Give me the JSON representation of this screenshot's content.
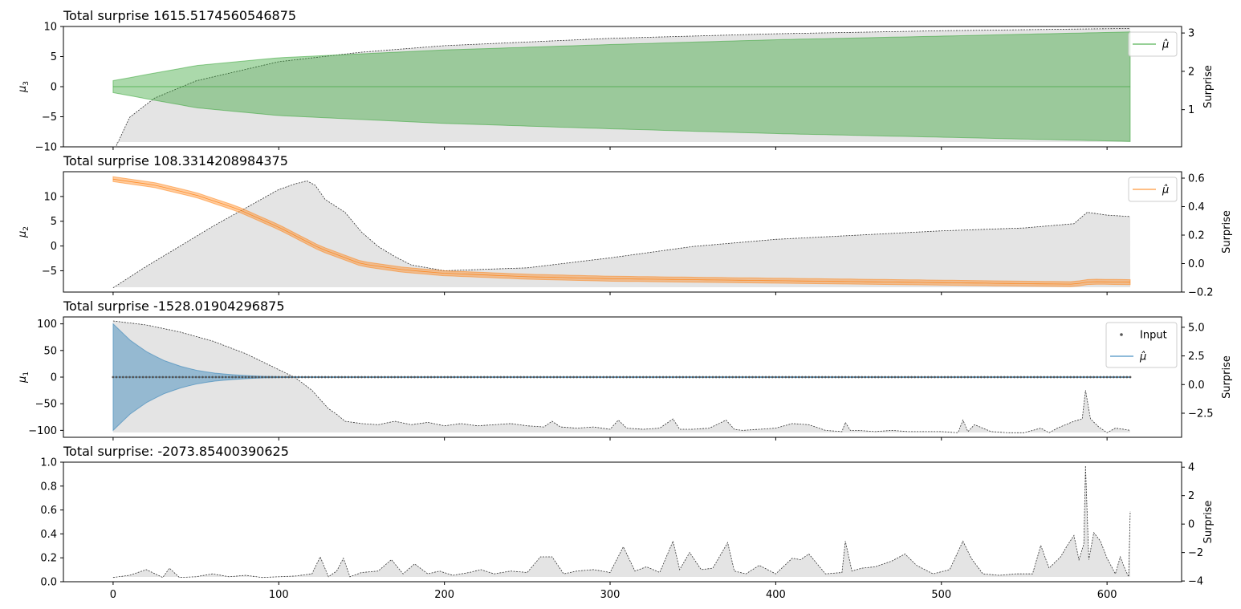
{
  "chart_data": [
    {
      "type": "area",
      "title": "Total surprise 1615.5174560546875",
      "ylabel": "$\\mu_3$",
      "ylabel_display": "μ",
      "ylabel_sub": "3",
      "y2label": "Surprise",
      "xlim": [
        -30,
        645
      ],
      "ylim": [
        -10,
        10
      ],
      "y2lim": [
        0.03,
        3.17
      ],
      "yticks": [
        -10,
        -5,
        0,
        5,
        10
      ],
      "y2ticks": [
        1,
        2,
        3
      ],
      "legend": {
        "placement": "top-right",
        "entries": [
          "$\\hat{\\mu}$"
        ],
        "display": [
          "μ̂"
        ]
      },
      "colors": {
        "mean": "#2ca02c",
        "band": "#2ca02c",
        "surprise_fill": "#d3d3d3",
        "surprise_line": "#333333"
      },
      "mean": {
        "x": [
          0,
          614
        ],
        "y": [
          0,
          0
        ]
      },
      "band_halfwidth": {
        "x": [
          0,
          50,
          100,
          200,
          300,
          400,
          500,
          614
        ],
        "y": [
          1,
          3.5,
          4.8,
          6.1,
          7.0,
          7.8,
          8.4,
          9.1
        ]
      },
      "surprise": {
        "x": [
          2,
          10,
          25,
          50,
          100,
          150,
          200,
          300,
          400,
          500,
          614
        ],
        "y": [
          0.06,
          0.8,
          1.3,
          1.75,
          2.25,
          2.5,
          2.67,
          2.86,
          2.98,
          3.06,
          3.12
        ]
      }
    },
    {
      "type": "area",
      "title": "Total surprise 108.3314208984375",
      "ylabel": "$\\mu_2$",
      "ylabel_display": "μ",
      "ylabel_sub": "2",
      "y2label": "Surprise",
      "xlim": [
        -30,
        645
      ],
      "ylim": [
        -9.3,
        15
      ],
      "y2lim": [
        -0.2,
        0.645
      ],
      "yticks": [
        -5,
        0,
        5,
        10
      ],
      "y2ticks": [
        -0.2,
        0.0,
        0.2,
        0.4,
        0.6
      ],
      "y2ticklabels": [
        "−0.2",
        "0.0",
        "0.2",
        "0.4",
        "0.6"
      ],
      "legend": {
        "placement": "top-right",
        "entries": [
          "$\\hat{\\mu}$"
        ],
        "display": [
          "μ̂"
        ]
      },
      "colors": {
        "mean": "#ff7f0e",
        "band": "#ff7f0e",
        "surprise_fill": "#d3d3d3",
        "surprise_line": "#333333"
      },
      "mean": {
        "x": [
          0,
          25,
          50,
          75,
          100,
          125,
          150,
          175,
          200,
          250,
          300,
          350,
          400,
          450,
          500,
          550,
          580,
          590,
          614
        ],
        "y": [
          13.5,
          12.3,
          10.3,
          7.5,
          3.8,
          -0.5,
          -3.6,
          -4.8,
          -5.5,
          -6.2,
          -6.6,
          -6.8,
          -7.0,
          -7.2,
          -7.4,
          -7.6,
          -7.7,
          -7.2,
          -7.3
        ]
      },
      "band_halfwidth": 0.5,
      "surprise": {
        "x": [
          0,
          20,
          40,
          60,
          80,
          100,
          110,
          117,
          122,
          128,
          140,
          150,
          160,
          170,
          180,
          200,
          250,
          300,
          350,
          400,
          450,
          500,
          550,
          580,
          588,
          600,
          614
        ],
        "y": [
          -0.17,
          -0.02,
          0.12,
          0.26,
          0.39,
          0.52,
          0.56,
          0.58,
          0.55,
          0.45,
          0.36,
          0.22,
          0.12,
          0.05,
          -0.01,
          -0.05,
          -0.03,
          0.04,
          0.12,
          0.17,
          0.2,
          0.23,
          0.25,
          0.28,
          0.36,
          0.34,
          0.33
        ]
      }
    },
    {
      "type": "area",
      "title": "Total surprise -1528.01904296875",
      "ylabel": "$\\mu_1$",
      "ylabel_display": "μ",
      "ylabel_sub": "1",
      "y2label": "Surprise",
      "xlim": [
        -30,
        645
      ],
      "ylim": [
        -113,
        113
      ],
      "y2lim": [
        -4.6,
        5.9
      ],
      "yticks": [
        -100,
        -50,
        0,
        50,
        100
      ],
      "y2ticks": [
        -2.5,
        0.0,
        2.5,
        5.0
      ],
      "y2ticklabels": [
        "−2.5",
        "0.0",
        "2.5",
        "5.0"
      ],
      "legend": {
        "placement": "top-right",
        "entries": [
          "Input",
          "$\\hat{\\mu}$"
        ],
        "display": [
          "Input",
          "μ̂"
        ]
      },
      "colors": {
        "mean": "#1f77b4",
        "band": "#1f77b4",
        "input": "#555555",
        "surprise_fill": "#d3d3d3",
        "surprise_line": "#333333"
      },
      "input_y": 0,
      "input_x_range": [
        0,
        614
      ],
      "mean": {
        "x": [
          0,
          614
        ],
        "y": [
          0,
          0
        ]
      },
      "band_halfwidth": {
        "x": [
          0,
          10,
          20,
          30,
          40,
          50,
          60,
          70,
          80,
          90,
          100
        ],
        "y": [
          100,
          70,
          48,
          32,
          21,
          13,
          8,
          5,
          3,
          1.5,
          0.8
        ]
      },
      "surprise": {
        "x": [
          0,
          20,
          40,
          60,
          80,
          100,
          110,
          120,
          125,
          130,
          135,
          140,
          150,
          160,
          170,
          180,
          190,
          200,
          210,
          220,
          230,
          240,
          250,
          260,
          265,
          270,
          280,
          290,
          300,
          305,
          310,
          320,
          330,
          338,
          342,
          350,
          360,
          370,
          375,
          380,
          390,
          400,
          410,
          420,
          430,
          440,
          442,
          445,
          450,
          460,
          470,
          480,
          490,
          500,
          510,
          513,
          516,
          520,
          530,
          540,
          550,
          560,
          565,
          570,
          575,
          580,
          585,
          587,
          590,
          595,
          600,
          605,
          610,
          614
        ],
        "y": [
          5.55,
          5.2,
          4.6,
          3.8,
          2.7,
          1.3,
          0.6,
          -0.5,
          -1.3,
          -2.1,
          -2.6,
          -3.2,
          -3.4,
          -3.5,
          -3.2,
          -3.5,
          -3.3,
          -3.6,
          -3.4,
          -3.6,
          -3.5,
          -3.4,
          -3.6,
          -3.7,
          -3.2,
          -3.7,
          -3.8,
          -3.7,
          -3.9,
          -3.1,
          -3.8,
          -3.9,
          -3.8,
          -3.0,
          -3.9,
          -3.9,
          -3.8,
          -3.1,
          -3.9,
          -4.0,
          -3.9,
          -3.8,
          -3.4,
          -3.5,
          -4.0,
          -4.1,
          -3.3,
          -4.0,
          -4.0,
          -4.1,
          -4.0,
          -4.1,
          -4.1,
          -4.1,
          -4.2,
          -3.1,
          -4.1,
          -3.5,
          -4.1,
          -4.2,
          -4.2,
          -3.8,
          -4.2,
          -3.8,
          -3.5,
          -3.2,
          -3.0,
          -0.5,
          -3.0,
          -3.7,
          -4.2,
          -3.8,
          -3.9,
          -4.0
        ]
      }
    },
    {
      "type": "area",
      "title": "Total surprise: -2073.85400390625",
      "ylabel": "",
      "y2label": "Surprise",
      "xlim": [
        -30,
        645
      ],
      "xticks": [
        0,
        100,
        200,
        300,
        400,
        500,
        600
      ],
      "ylim": [
        0,
        1
      ],
      "y2lim": [
        -4.05,
        4.35
      ],
      "yticks": [
        0.0,
        0.2,
        0.4,
        0.6,
        0.8,
        1.0
      ],
      "y2ticks": [
        -4,
        -2,
        0,
        2,
        4
      ],
      "y2ticklabels": [
        "−4",
        "−2",
        "0",
        "2",
        "4"
      ],
      "colors": {
        "surprise_fill": "#d3d3d3",
        "surprise_line": "#333333"
      },
      "surprise": {
        "x": [
          0,
          10,
          20,
          30,
          34,
          40,
          50,
          60,
          70,
          80,
          90,
          100,
          110,
          120,
          125,
          130,
          135,
          139,
          143,
          150,
          160,
          168,
          175,
          182,
          190,
          197,
          205,
          215,
          222,
          230,
          240,
          250,
          258,
          265,
          272,
          280,
          290,
          300,
          308,
          315,
          322,
          330,
          338,
          342,
          348,
          355,
          362,
          371,
          375,
          382,
          390,
          400,
          410,
          415,
          420,
          430,
          440,
          442,
          446,
          452,
          460,
          470,
          478,
          485,
          495,
          505,
          513,
          518,
          525,
          535,
          545,
          555,
          560,
          565,
          572,
          576,
          580,
          583,
          586,
          587,
          589,
          592,
          596,
          600,
          605,
          608,
          611,
          613,
          614
        ],
        "y": [
          -3.75,
          -3.6,
          -3.2,
          -3.75,
          -3.1,
          -3.75,
          -3.7,
          -3.5,
          -3.7,
          -3.6,
          -3.75,
          -3.7,
          -3.65,
          -3.5,
          -2.3,
          -3.7,
          -3.3,
          -2.4,
          -3.7,
          -3.4,
          -3.3,
          -2.5,
          -3.5,
          -2.8,
          -3.5,
          -3.3,
          -3.6,
          -3.4,
          -3.2,
          -3.5,
          -3.3,
          -3.4,
          -2.3,
          -2.3,
          -3.5,
          -3.3,
          -3.2,
          -3.4,
          -1.6,
          -3.3,
          -3.0,
          -3.4,
          -1.2,
          -3.2,
          -2.0,
          -3.2,
          -3.1,
          -1.3,
          -3.3,
          -3.5,
          -2.9,
          -3.5,
          -2.4,
          -2.5,
          -2.1,
          -3.5,
          -3.4,
          -1.2,
          -3.3,
          -3.1,
          -3.0,
          -2.6,
          -2.1,
          -2.9,
          -3.5,
          -3.2,
          -1.2,
          -2.4,
          -3.5,
          -3.6,
          -3.5,
          -3.5,
          -1.5,
          -3.1,
          -2.3,
          -1.5,
          -0.8,
          -2.5,
          -1.4,
          4.1,
          -2.5,
          -0.6,
          -1.2,
          -2.4,
          -3.5,
          -2.3,
          -3.2,
          -3.7,
          0.9
        ]
      }
    }
  ]
}
